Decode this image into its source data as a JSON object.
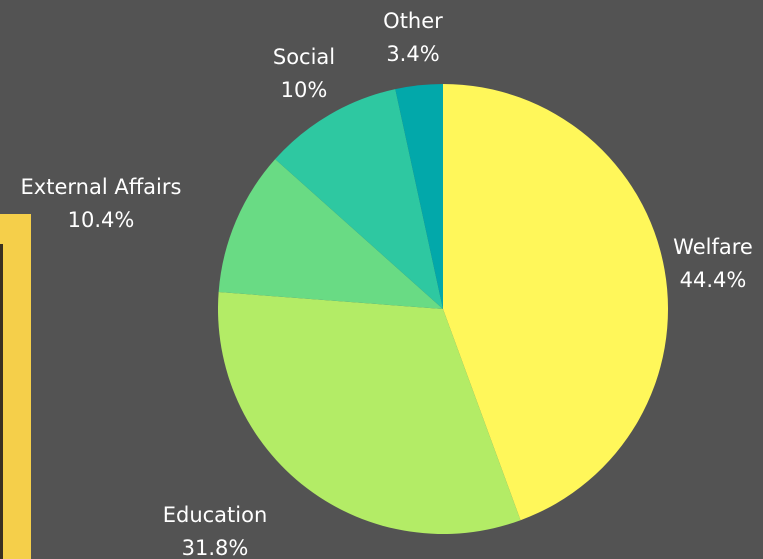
{
  "chart_data": {
    "type": "pie",
    "title": "",
    "slices": [
      {
        "label": "Welfare",
        "value": 44.4,
        "value_label": "44.4%",
        "color": "#fff75a"
      },
      {
        "label": "Education",
        "value": 31.8,
        "value_label": "31.8%",
        "color": "#b3ec66"
      },
      {
        "label": "External Affairs",
        "value": 10.4,
        "value_label": "10.4%",
        "color": "#69db84"
      },
      {
        "label": "Social",
        "value": 10,
        "value_label": "10%",
        "color": "#2ec8a1"
      },
      {
        "label": "Other",
        "value": 3.4,
        "value_label": "3.4%",
        "color": "#02a8aa"
      }
    ]
  },
  "page": {
    "background": "#535353",
    "left_strip_color": "#f5cf4a"
  }
}
